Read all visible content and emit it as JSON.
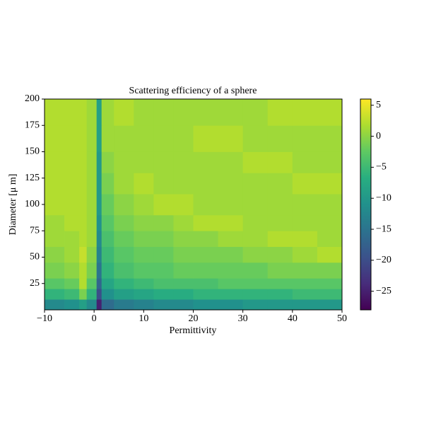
{
  "chart_data": {
    "type": "heatmap",
    "title": "Scattering efficiency of a sphere",
    "xlabel": "Permittivity",
    "ylabel": "Diameter [μ m]",
    "xbins": [
      -10,
      -6,
      -3,
      -1.5,
      0.5,
      1.5,
      4,
      8,
      12,
      16,
      20,
      25,
      30,
      35,
      40,
      45,
      50
    ],
    "ybins": [
      0,
      10,
      20,
      30,
      45,
      60,
      75,
      90,
      110,
      130,
      150,
      175,
      200
    ],
    "z": [
      [
        -12,
        -11,
        -9,
        -12,
        -25,
        -16,
        -14,
        -13,
        -12,
        -12,
        -11,
        -11,
        -10,
        -10,
        -10,
        -10
      ],
      [
        -6,
        -5,
        -1,
        -6,
        -20,
        -11,
        -9,
        -8,
        -7,
        -7,
        -6,
        -6,
        -6,
        -6,
        -5,
        -5
      ],
      [
        -3,
        -2,
        2,
        -3,
        -17,
        -8,
        -6,
        -5,
        -4,
        -4,
        -4,
        -3,
        -3,
        -3,
        -3,
        -3
      ],
      [
        -1,
        0,
        2,
        -1,
        -15,
        -6,
        -4,
        -3,
        -3,
        -2,
        -2,
        -2,
        -2,
        -1,
        -1,
        -1
      ],
      [
        0,
        1,
        3,
        0,
        -13,
        -5,
        -3,
        -2,
        -2,
        -1,
        -1,
        -1,
        0,
        0,
        1,
        2
      ],
      [
        1,
        1,
        2,
        1,
        -12,
        -4,
        -2,
        -1,
        -1,
        0,
        0,
        1,
        1,
        2,
        2,
        1
      ],
      [
        1,
        2,
        2,
        1,
        -11,
        -3,
        -1,
        0,
        0,
        1,
        2,
        2,
        1,
        1,
        1,
        1
      ],
      [
        2,
        2,
        2,
        1,
        -10,
        -2,
        0,
        1,
        2,
        2,
        1,
        1,
        1,
        1,
        1,
        1
      ],
      [
        2,
        2,
        2,
        1,
        -10,
        -1,
        1,
        2,
        1,
        1,
        1,
        1,
        1,
        1,
        2,
        2
      ],
      [
        2,
        2,
        2,
        1,
        -10,
        0,
        1,
        1,
        1,
        1,
        1,
        1,
        2,
        2,
        1,
        1
      ],
      [
        2,
        2,
        2,
        1,
        -9,
        1,
        1,
        1,
        1,
        1,
        2,
        2,
        1,
        1,
        1,
        1
      ],
      [
        2,
        2,
        2,
        1,
        -9,
        1,
        2,
        1,
        1,
        1,
        1,
        1,
        1,
        2,
        2,
        2
      ]
    ],
    "xlim": [
      -10,
      50
    ],
    "ylim": [
      0,
      200
    ],
    "xticks": [
      {
        "value": -10,
        "label": "−10"
      },
      0,
      10,
      20,
      30,
      40,
      50
    ],
    "yticks": [
      25,
      50,
      75,
      100,
      125,
      150,
      175,
      200
    ],
    "colormap": "viridis",
    "clim": [
      -28,
      6
    ],
    "cticks": [
      5,
      0,
      {
        "value": -5,
        "label": "−5"
      },
      {
        "value": -10,
        "label": "−10"
      },
      {
        "value": -15,
        "label": "−15"
      },
      {
        "value": -20,
        "label": "−20"
      },
      {
        "value": -25,
        "label": "−25"
      }
    ]
  }
}
